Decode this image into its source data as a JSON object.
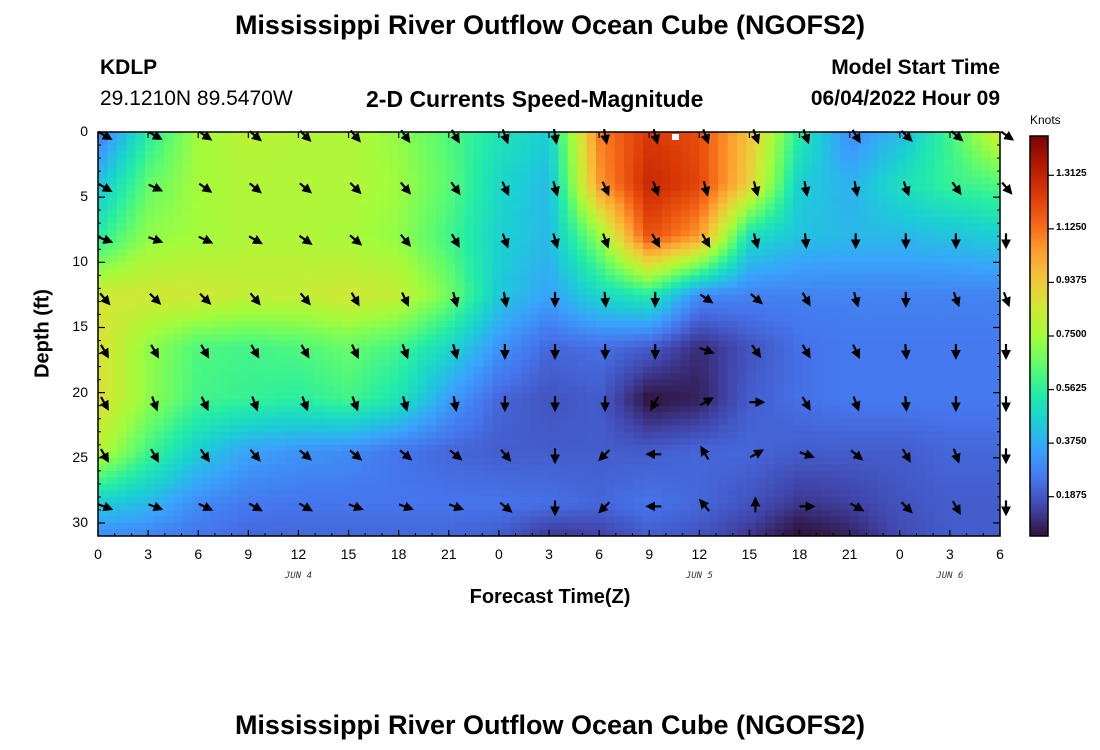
{
  "header": {
    "title": "Mississippi River Outflow Ocean Cube (NGOFS2)",
    "station": "KDLP",
    "coords": "29.1210N  89.5470W",
    "subtitle": "2-D Currents Speed-Magnitude",
    "model_start_label": "Model Start Time",
    "model_start_value": "06/04/2022 Hour 09"
  },
  "footer": {
    "title": "Mississippi River Outflow Ocean Cube (NGOFS2)"
  },
  "chart_data": {
    "type": "heatmap",
    "xlabel": "Forecast Time(Z)",
    "ylabel": "Depth (ft)",
    "x_tick_labels": [
      "0",
      "3",
      "6",
      "9",
      "12",
      "15",
      "18",
      "21",
      "0",
      "3",
      "6",
      "9",
      "12",
      "15",
      "18",
      "21",
      "0",
      "3",
      "6"
    ],
    "x_range_hours": [
      0,
      54
    ],
    "date_labels": [
      {
        "text": "JUN 4",
        "hour": 12
      },
      {
        "text": "JUN 5",
        "hour": 36
      },
      {
        "text": "JUN 6",
        "hour": 51
      }
    ],
    "y_ticks": [
      0,
      5,
      10,
      15,
      20,
      25,
      30
    ],
    "y_range": [
      0,
      31
    ],
    "y_inverted": true,
    "colorbar": {
      "label": "Knots",
      "ticks": [
        "0.1875",
        "0.3750",
        "0.5625",
        "0.7500",
        "0.9375",
        "1.1250",
        "1.3125"
      ],
      "range": [
        0.05,
        1.45
      ],
      "colormap": [
        "#30123b",
        "#4145ab",
        "#4675ed",
        "#39a2fc",
        "#1bcfd4",
        "#24eca6",
        "#61fc6c",
        "#a4fc3b",
        "#d1e834",
        "#f3c63a",
        "#fe9b2d",
        "#f36315",
        "#d93806",
        "#b11901",
        "#7a0403"
      ]
    },
    "vector_times_hours": [
      0,
      3,
      6,
      9,
      12,
      15,
      18,
      21,
      24,
      27,
      30,
      33,
      36,
      39,
      42,
      45,
      48,
      51,
      54
    ],
    "vector_depths_ft": [
      0,
      4,
      8,
      12.5,
      16.5,
      20.5,
      24.5,
      28.5
    ],
    "speed_grid": {
      "times_hours": [
        0,
        3,
        6,
        9,
        12,
        15,
        18,
        21,
        24,
        27,
        30,
        33,
        36,
        39,
        42,
        45,
        48,
        51,
        54
      ],
      "depths_ft": [
        0,
        4,
        8,
        12.5,
        16.5,
        20.5,
        24.5,
        28.5,
        31
      ],
      "values": [
        [
          0.25,
          0.55,
          0.75,
          0.8,
          0.78,
          0.78,
          0.72,
          0.62,
          0.52,
          0.45,
          1.1,
          1.25,
          1.2,
          0.95,
          0.55,
          0.3,
          0.4,
          0.6,
          0.85
        ],
        [
          0.42,
          0.65,
          0.75,
          0.78,
          0.78,
          0.78,
          0.74,
          0.64,
          0.48,
          0.4,
          1.05,
          1.3,
          1.22,
          0.92,
          0.45,
          0.38,
          0.5,
          0.58,
          0.62
        ],
        [
          0.55,
          0.72,
          0.75,
          0.78,
          0.78,
          0.76,
          0.72,
          0.6,
          0.46,
          0.4,
          0.72,
          1.2,
          1.05,
          0.5,
          0.42,
          0.4,
          0.4,
          0.42,
          0.45
        ],
        [
          0.85,
          0.85,
          0.85,
          0.82,
          0.82,
          0.85,
          0.82,
          0.68,
          0.44,
          0.35,
          0.48,
          0.55,
          0.3,
          0.28,
          0.28,
          0.28,
          0.28,
          0.28,
          0.28
        ],
        [
          0.88,
          0.72,
          0.62,
          0.6,
          0.62,
          0.66,
          0.6,
          0.48,
          0.32,
          0.22,
          0.24,
          0.2,
          0.1,
          0.18,
          0.24,
          0.26,
          0.26,
          0.26,
          0.26
        ],
        [
          0.88,
          0.72,
          0.6,
          0.58,
          0.56,
          0.6,
          0.52,
          0.34,
          0.22,
          0.18,
          0.2,
          0.05,
          0.08,
          0.2,
          0.24,
          0.26,
          0.26,
          0.26,
          0.26
        ],
        [
          0.8,
          0.6,
          0.45,
          0.35,
          0.32,
          0.3,
          0.25,
          0.22,
          0.2,
          0.2,
          0.2,
          0.2,
          0.22,
          0.22,
          0.2,
          0.2,
          0.2,
          0.22,
          0.22
        ],
        [
          0.45,
          0.4,
          0.3,
          0.26,
          0.25,
          0.25,
          0.25,
          0.25,
          0.25,
          0.24,
          0.22,
          0.25,
          0.22,
          0.18,
          0.12,
          0.14,
          0.18,
          0.2,
          0.2
        ],
        [
          0.3,
          0.28,
          0.25,
          0.22,
          0.22,
          0.22,
          0.22,
          0.22,
          0.2,
          0.12,
          0.14,
          0.2,
          0.18,
          0.12,
          0.04,
          0.08,
          0.16,
          0.2,
          0.2
        ]
      ]
    },
    "vector_directions_deg": [
      [
        120,
        120,
        125,
        130,
        135,
        140,
        145,
        150,
        160,
        170,
        170,
        165,
        160,
        160,
        160,
        150,
        135,
        130,
        125
      ],
      [
        120,
        115,
        125,
        130,
        130,
        135,
        140,
        145,
        155,
        165,
        155,
        160,
        165,
        165,
        170,
        170,
        160,
        145,
        140
      ],
      [
        110,
        110,
        115,
        120,
        125,
        130,
        140,
        150,
        160,
        165,
        160,
        150,
        150,
        165,
        175,
        180,
        180,
        180,
        180
      ],
      [
        140,
        135,
        135,
        140,
        140,
        150,
        155,
        165,
        170,
        180,
        175,
        180,
        125,
        130,
        150,
        165,
        180,
        160,
        160
      ],
      [
        150,
        150,
        150,
        150,
        150,
        155,
        160,
        165,
        180,
        180,
        180,
        180,
        110,
        145,
        150,
        155,
        175,
        180,
        180
      ],
      [
        150,
        160,
        155,
        160,
        160,
        160,
        165,
        170,
        180,
        180,
        180,
        210,
        60,
        90,
        150,
        160,
        175,
        180,
        180
      ],
      [
        150,
        150,
        145,
        140,
        130,
        130,
        130,
        130,
        140,
        180,
        225,
        270,
        330,
        60,
        110,
        130,
        150,
        160,
        180
      ],
      [
        110,
        110,
        115,
        120,
        120,
        110,
        110,
        110,
        130,
        180,
        225,
        270,
        320,
        0,
        90,
        120,
        135,
        150,
        180
      ]
    ]
  }
}
